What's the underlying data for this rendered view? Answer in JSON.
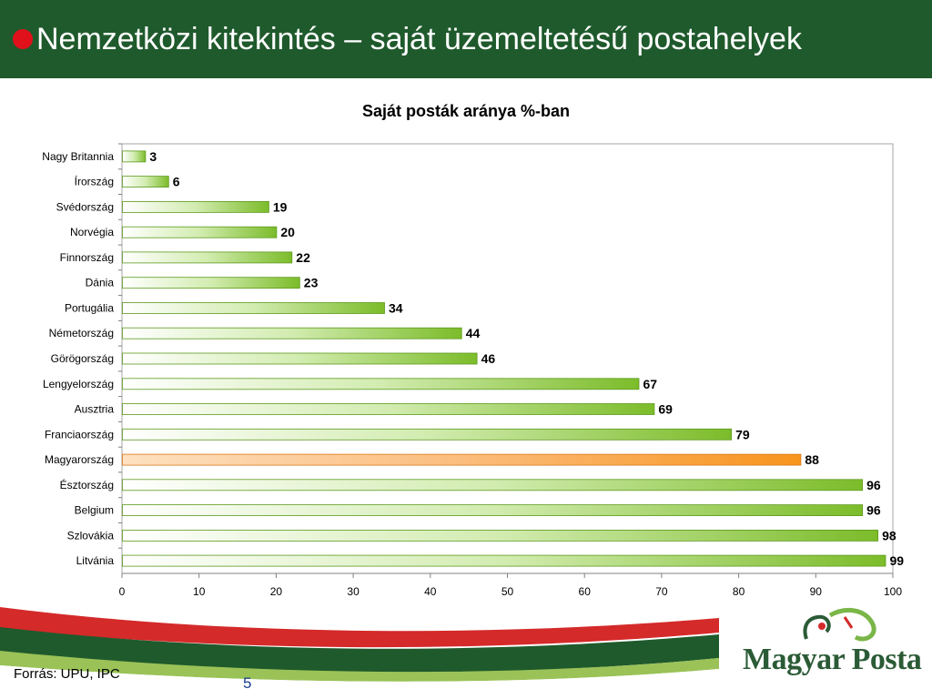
{
  "header": {
    "title": "Nemzetközi kitekintés – saját üzemeltetésű postahelyek"
  },
  "colors": {
    "header_bg": "#1f5a2c",
    "bullet": "#e0111b",
    "bar_default": "#7cbc2a",
    "bar_highlight": "#f7941d"
  },
  "chart_data": {
    "type": "bar",
    "orientation": "horizontal",
    "title": "Saját posták aránya %-ban",
    "categories": [
      "Nagy Britannia",
      "Írország",
      "Svédország",
      "Norvégia",
      "Finnország",
      "Dánia",
      "Portugália",
      "Németország",
      "Görögország",
      "Lengyelország",
      "Ausztria",
      "Franciaország",
      "Magyarország",
      "Észtország",
      "Belgium",
      "Szlovákia",
      "Litvánia"
    ],
    "values": [
      3,
      6,
      19,
      20,
      22,
      23,
      34,
      44,
      46,
      67,
      69,
      79,
      88,
      96,
      96,
      98,
      99
    ],
    "highlight": "Magyarország",
    "xlim": [
      0,
      100
    ],
    "xticks": [
      "0",
      "10",
      "20",
      "30",
      "40",
      "50",
      "60",
      "70",
      "80",
      "90",
      "100"
    ],
    "grid": false,
    "data_labels": true,
    "legend": "none"
  },
  "footer": {
    "source": "Forrás: UPU, IPC",
    "page_number": "5",
    "logo_text": "Magyar Posta"
  }
}
